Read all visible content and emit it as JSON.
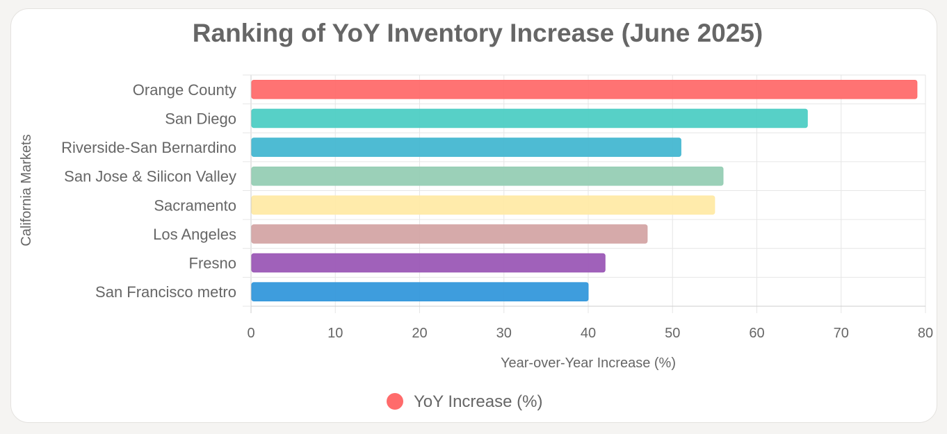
{
  "chart_data": {
    "type": "bar",
    "orientation": "horizontal",
    "title": "Ranking of YoY Inventory Increase (June 2025)",
    "xlabel": "Year-over-Year Increase (%)",
    "ylabel": "California Markets",
    "xlim": [
      0,
      80
    ],
    "xticks": [
      0,
      10,
      20,
      30,
      40,
      50,
      60,
      70,
      80
    ],
    "grid": true,
    "legend_position": "bottom",
    "categories": [
      "Orange County",
      "San Diego",
      "Riverside-San Bernardino",
      "San Jose & Silicon Valley",
      "Sacramento",
      "Los Angeles",
      "Fresno",
      "San Francisco metro"
    ],
    "series": [
      {
        "name": "YoY Increase (%)",
        "values": [
          79,
          66,
          51,
          56,
          55,
          47,
          42,
          40
        ],
        "colors": [
          "#ff6b6b",
          "#4ecdc4",
          "#45b7d1",
          "#96ceb4",
          "#ffeaa7",
          "#d4a5a5",
          "#9b59b6",
          "#3498db"
        ]
      }
    ]
  }
}
